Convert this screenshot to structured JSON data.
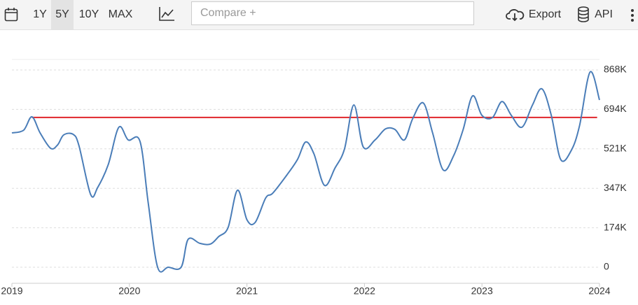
{
  "toolbar": {
    "ranges": [
      "1Y",
      "5Y",
      "10Y",
      "MAX"
    ],
    "compare": "Compare +",
    "export": "Export",
    "api": "API"
  },
  "chart_data": {
    "type": "line",
    "x": [
      2019.0,
      2019.1,
      2019.17,
      2019.24,
      2019.33,
      2019.39,
      2019.44,
      2019.52,
      2019.57,
      2019.67,
      2019.73,
      2019.82,
      2019.91,
      2019.99,
      2020.09,
      2020.16,
      2020.24,
      2020.33,
      2020.44,
      2020.5,
      2020.6,
      2020.69,
      2020.76,
      2020.84,
      2020.92,
      2021.0,
      2021.07,
      2021.16,
      2021.22,
      2021.34,
      2021.43,
      2021.5,
      2021.57,
      2021.66,
      2021.75,
      2021.83,
      2021.91,
      2021.99,
      2022.09,
      2022.18,
      2022.26,
      2022.34,
      2022.41,
      2022.5,
      2022.58,
      2022.67,
      2022.76,
      2022.84,
      2022.92,
      2023.0,
      2023.09,
      2023.17,
      2023.25,
      2023.34,
      2023.43,
      2023.51,
      2023.59,
      2023.67,
      2023.76,
      2023.83,
      2023.92,
      2024.0
    ],
    "series": [
      {
        "color": "#4a7db8",
        "values": [
          591000,
          603000,
          662000,
          591000,
          523000,
          539000,
          582000,
          585000,
          536000,
          320000,
          351000,
          452000,
          616000,
          560000,
          554000,
          283000,
          0,
          0,
          0,
          123000,
          105000,
          102000,
          135000,
          175000,
          339000,
          209000,
          197000,
          305000,
          326000,
          406000,
          474000,
          551000,
          499000,
          360000,
          437000,
          520000,
          714000,
          529000,
          560000,
          609000,
          606000,
          560000,
          653000,
          723000,
          591000,
          428000,
          492000,
          606000,
          754000,
          668000,
          659000,
          729000,
          668000,
          616000,
          714000,
          785000,
          668000,
          474000,
          514000,
          622000,
          859000,
          736000
        ]
      }
    ],
    "reference_line": {
      "y": 659000,
      "x_start": 2019.17,
      "x_end": 2023.98,
      "color": "#e0262b"
    },
    "xlim": [
      2019,
      2024
    ],
    "xticks": [
      2019,
      2020,
      2021,
      2022,
      2023,
      2024
    ],
    "ylim": [
      0,
      868000
    ],
    "yticks": [
      0,
      {
        "value": 173600,
        "label": "174K"
      },
      {
        "value": 347200,
        "label": "347K"
      },
      {
        "value": 520800,
        "label": "521K"
      },
      {
        "value": 694400,
        "label": "694K"
      },
      {
        "value": 868000,
        "label": "868K"
      }
    ],
    "grid": true
  }
}
